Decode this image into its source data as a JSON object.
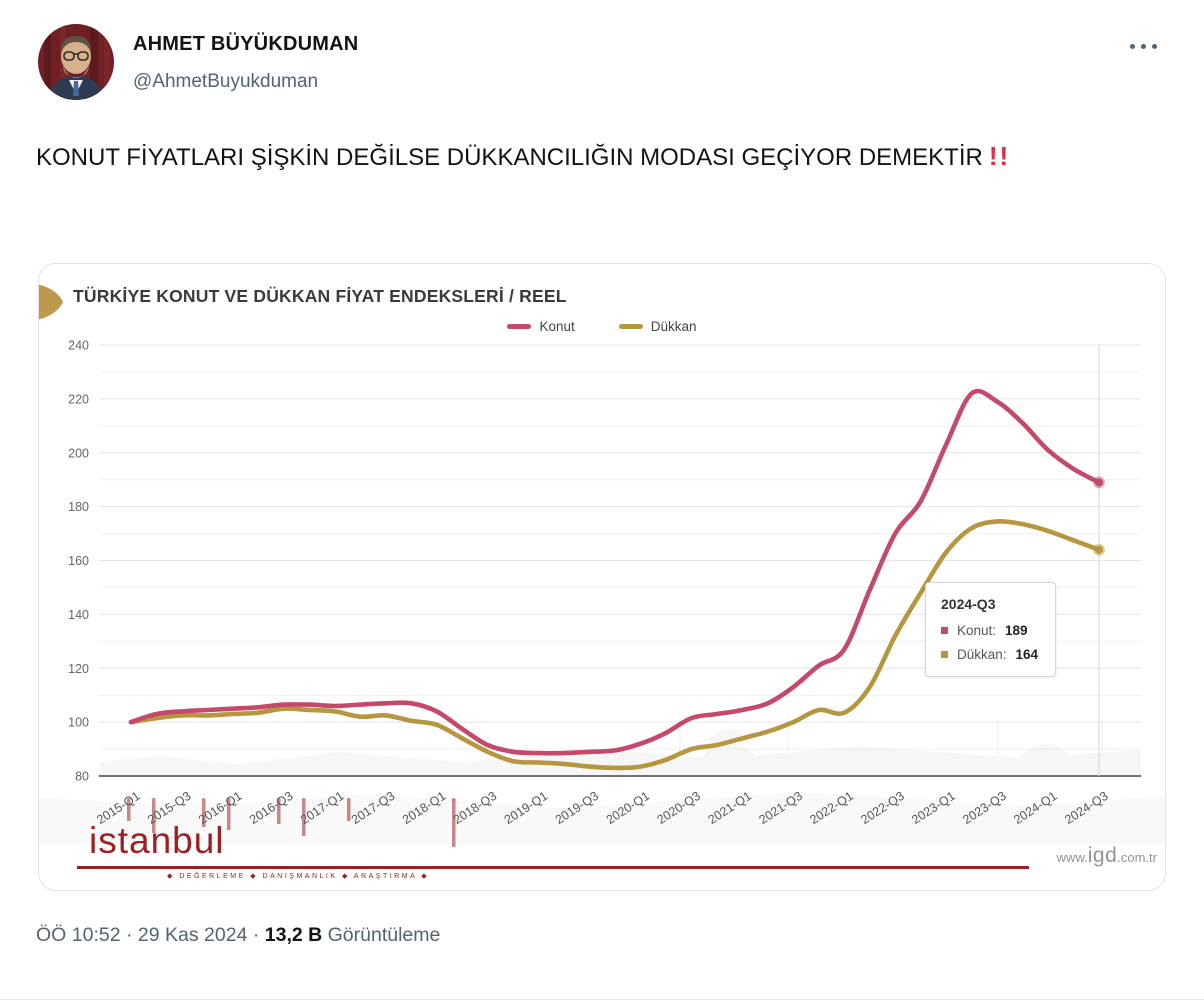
{
  "tweet": {
    "author_name": "AHMET BÜYÜKDUMAN",
    "author_handle": "@AhmetBuyukduman",
    "body": "KONUT FİYATLARI ŞİŞKİN DEĞİLSE DÜKKANCILIĞIN MODASI GEÇİYOR DEMEKTİR",
    "body_emphasis": "!!"
  },
  "footer": {
    "time": "ÖÖ 10:52",
    "date": "29 Kas 2024",
    "separator": "·",
    "views_count": "13,2 B",
    "views_label": "Görüntüleme"
  },
  "chart": {
    "title": "TÜRKİYE KONUT VE DÜKKAN FİYAT ENDEKSLERİ / REEL",
    "logo_text": "istanbul",
    "logo_tagline": "◆   DEĞERLEME    ◆   DANIŞMANLIK    ◆   ARAŞTIRMA    ◆",
    "site_www": "www.",
    "site_name": "igd",
    "site_tld": ".com.tr",
    "tooltip": {
      "title": "2024-Q3",
      "rows": [
        {
          "label": "Konut:",
          "value": "189"
        },
        {
          "label": "Dükkan:",
          "value": "164"
        }
      ]
    }
  },
  "chart_data": {
    "type": "line",
    "title": "TÜRKİYE KONUT VE DÜKKAN FİYAT ENDEKSLERİ / REEL",
    "xlabel": "",
    "ylabel": "",
    "ylim": [
      80,
      240
    ],
    "y_ticks": [
      240,
      220,
      200,
      180,
      160,
      140,
      120,
      100,
      80
    ],
    "grid": true,
    "legend_position": "top",
    "categories": [
      "2015-Q1",
      "2015-Q2",
      "2015-Q3",
      "2015-Q4",
      "2016-Q1",
      "2016-Q2",
      "2016-Q3",
      "2016-Q4",
      "2017-Q1",
      "2017-Q2",
      "2017-Q3",
      "2017-Q4",
      "2018-Q1",
      "2018-Q2",
      "2018-Q3",
      "2018-Q4",
      "2019-Q1",
      "2019-Q2",
      "2019-Q3",
      "2019-Q4",
      "2020-Q1",
      "2020-Q2",
      "2020-Q3",
      "2020-Q4",
      "2021-Q1",
      "2021-Q2",
      "2021-Q3",
      "2021-Q4",
      "2022-Q1",
      "2022-Q2",
      "2022-Q3",
      "2022-Q4",
      "2023-Q1",
      "2023-Q2",
      "2023-Q3",
      "2023-Q4",
      "2024-Q1",
      "2024-Q2",
      "2024-Q3"
    ],
    "x_tick_labels": [
      "2015-Q1",
      "2015-Q3",
      "2016-Q1",
      "2016-Q3",
      "2017-Q1",
      "2017-Q3",
      "2018-Q1",
      "2018-Q3",
      "2019-Q1",
      "2019-Q3",
      "2020-Q1",
      "2020-Q3",
      "2021-Q1",
      "2021-Q3",
      "2022-Q1",
      "2022-Q3",
      "2023-Q1",
      "2023-Q3",
      "2024-Q1",
      "2024-Q3"
    ],
    "series": [
      {
        "name": "Konut",
        "color": "#c4496a",
        "values": [
          100,
          103,
          104,
          104.5,
          105,
          105.5,
          106.5,
          106.5,
          106,
          106.5,
          107,
          107,
          104,
          97.5,
          91.5,
          89,
          88.5,
          88.5,
          89,
          89.5,
          92,
          96,
          101.5,
          103,
          104.5,
          107,
          113,
          121,
          127,
          149,
          170,
          182,
          203,
          222,
          219,
          211,
          201,
          194,
          189
        ]
      },
      {
        "name": "Dükkan",
        "color": "#b6973f",
        "values": [
          100,
          101.5,
          102.5,
          102.5,
          103,
          103.5,
          105,
          104.5,
          104,
          102,
          102.5,
          100.5,
          99,
          94,
          89,
          85.5,
          85,
          84.5,
          83.5,
          83,
          83.5,
          86,
          90,
          91.5,
          94,
          96.5,
          100,
          104.5,
          103.5,
          113,
          132,
          148,
          163,
          172,
          174.5,
          173.5,
          171,
          167.5,
          164
        ]
      }
    ],
    "highlight": {
      "category": "2024-Q3",
      "Konut": 189,
      "Dükkan": 164
    }
  }
}
